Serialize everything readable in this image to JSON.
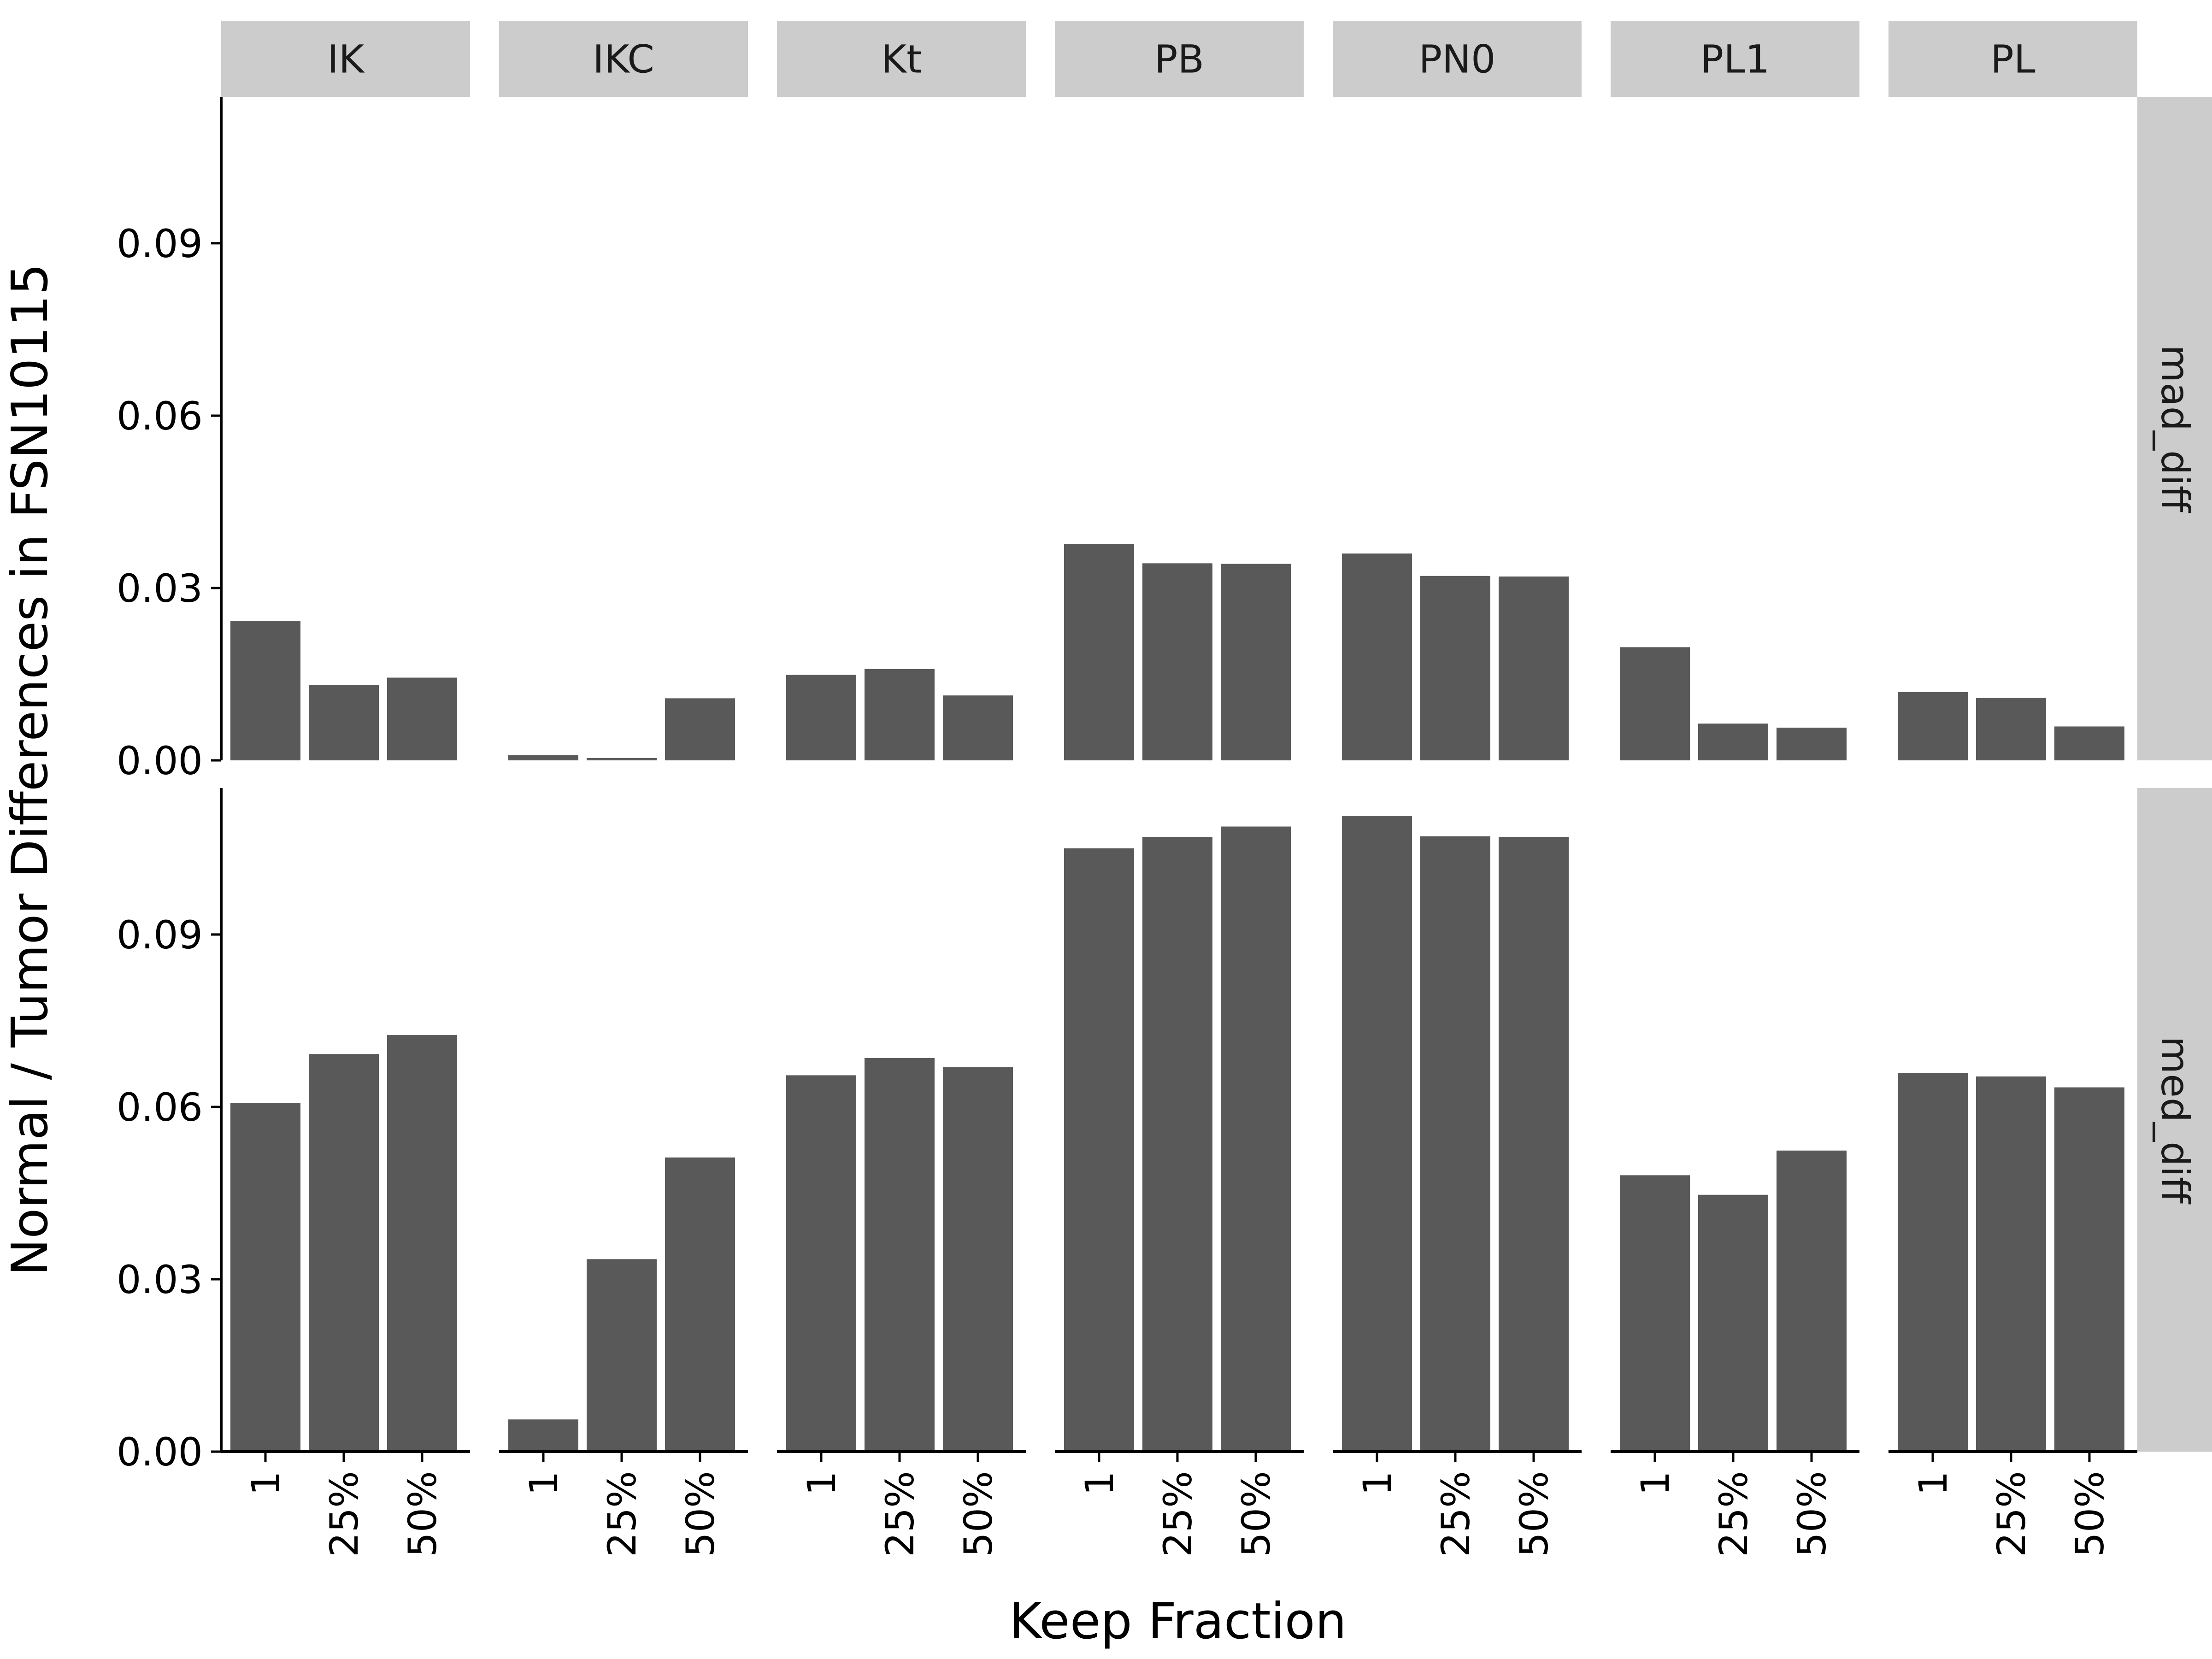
{
  "chart_data": {
    "type": "bar",
    "xlabel": "Keep Fraction",
    "ylabel": "Normal / Tumor Differences in FSN10115",
    "categories": [
      "1",
      "25%",
      "50%"
    ],
    "facet_columns": [
      "IK",
      "IKC",
      "Kt",
      "PB",
      "PN0",
      "PL1",
      "PL"
    ],
    "facet_rows": [
      "mad_diff",
      "med_diff"
    ],
    "yticks": [
      "0.00",
      "0.03",
      "0.06",
      "0.09"
    ],
    "ylim": [
      0,
      0.1155
    ],
    "bar_color": "#595959",
    "strip_color": "#cccccc",
    "grid": false,
    "panels": [
      {
        "row": "mad_diff",
        "col": "IK",
        "values": [
          0.0243,
          0.0131,
          0.0144
        ]
      },
      {
        "row": "mad_diff",
        "col": "IKC",
        "values": [
          0.0009,
          0.0004,
          0.0108
        ]
      },
      {
        "row": "mad_diff",
        "col": "Kt",
        "values": [
          0.0149,
          0.0159,
          0.0113
        ]
      },
      {
        "row": "mad_diff",
        "col": "PB",
        "values": [
          0.0377,
          0.0343,
          0.0342
        ]
      },
      {
        "row": "mad_diff",
        "col": "PN0",
        "values": [
          0.036,
          0.0321,
          0.032
        ]
      },
      {
        "row": "mad_diff",
        "col": "PL1",
        "values": [
          0.0197,
          0.0064,
          0.0057
        ]
      },
      {
        "row": "mad_diff",
        "col": "PL",
        "values": [
          0.0119,
          0.0109,
          0.0059
        ]
      },
      {
        "row": "med_diff",
        "col": "IK",
        "values": [
          0.0607,
          0.0692,
          0.0725
        ]
      },
      {
        "row": "med_diff",
        "col": "IKC",
        "values": [
          0.0056,
          0.0335,
          0.0512
        ]
      },
      {
        "row": "med_diff",
        "col": "Kt",
        "values": [
          0.0655,
          0.0685,
          0.0669
        ]
      },
      {
        "row": "med_diff",
        "col": "PB",
        "values": [
          0.105,
          0.107,
          0.1088
        ]
      },
      {
        "row": "med_diff",
        "col": "PN0",
        "values": [
          0.1106,
          0.1071,
          0.107
        ]
      },
      {
        "row": "med_diff",
        "col": "PL1",
        "values": [
          0.0481,
          0.0447,
          0.0524
        ]
      },
      {
        "row": "med_diff",
        "col": "PL",
        "values": [
          0.0659,
          0.0653,
          0.0634
        ]
      }
    ]
  }
}
